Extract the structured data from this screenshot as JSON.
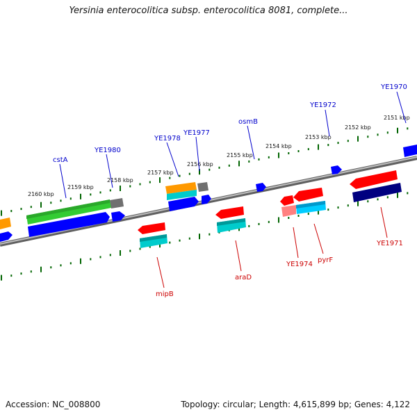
{
  "title": "Yersinia enterocolitica subsp. enterocolitica 8081, complete...",
  "footer": {
    "accession": "Accession: NC_008800",
    "summary": "Topology: circular; Length: 4,615,899 bp; Genes: 4,122"
  },
  "ticks": [
    "2151 kbp",
    "2152 kbp",
    "2153 kbp",
    "2154 kbp",
    "2155 kbp",
    "2156 kbp",
    "2157 kbp",
    "2158 kbp",
    "2159 kbp",
    "2160 kbp"
  ],
  "labels_above": [
    "YE1970",
    "YE1972",
    "osmB",
    "YE1977",
    "YE1978",
    "YE1980",
    "cstA"
  ],
  "labels_below": [
    "YE1971",
    "pyrF",
    "YE1974",
    "araD",
    "mipB"
  ],
  "colors": {
    "backbone": "#808080",
    "tick_green": "#006400",
    "label_blue": "#0000cc",
    "label_red": "#cc0000",
    "gene_blue": "#0000ff",
    "gene_green": "#33cc33",
    "gene_orange": "#ff9900",
    "gene_cyan": "#00cccc",
    "gene_red": "#ff0000",
    "gene_navy": "#000080",
    "gene_pink": "#ff8080",
    "gene_grey": "#707070"
  }
}
